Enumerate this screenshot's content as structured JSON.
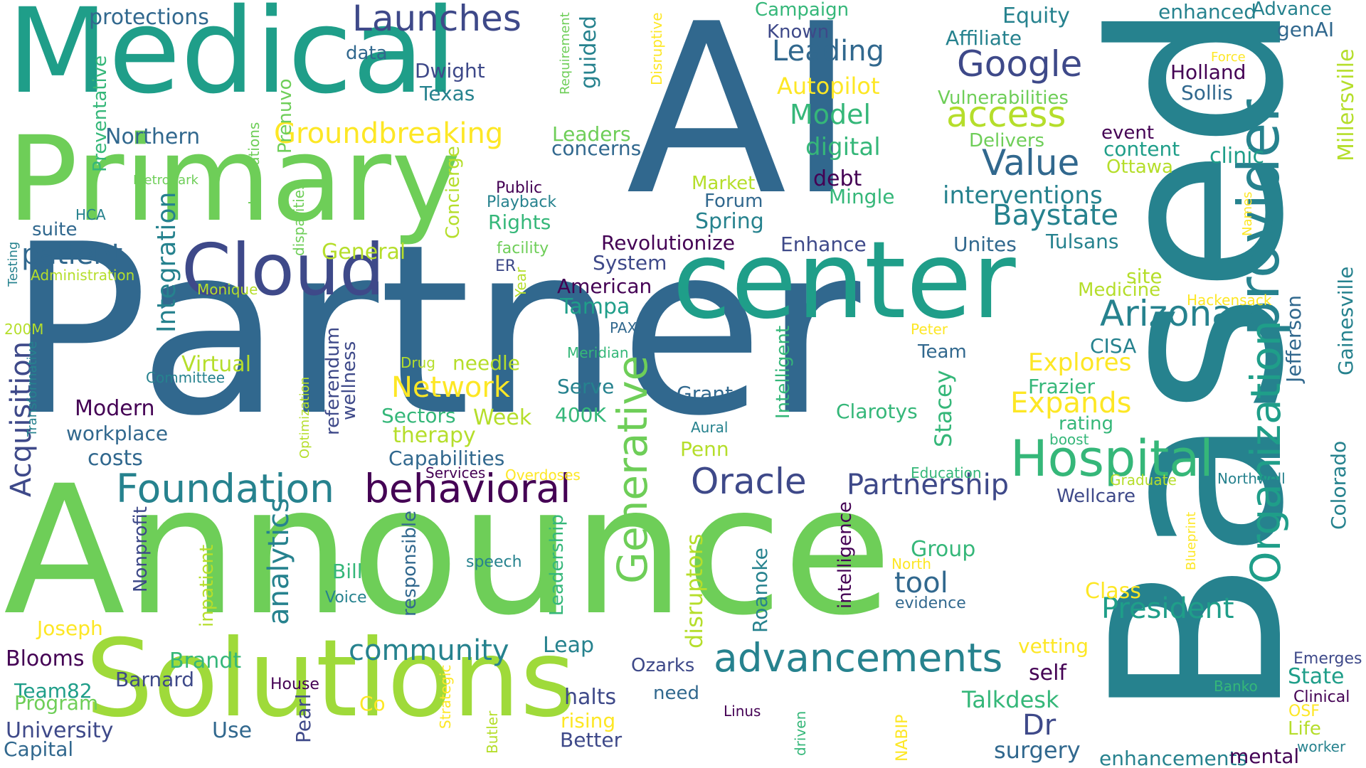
{
  "palette": {
    "dark_purple": "#440154",
    "purple": "#3e4989",
    "blue": "#31688e",
    "teal": "#26828e",
    "green_teal": "#1f9e89",
    "green": "#35b779",
    "light_green": "#6ece58",
    "lime": "#b5de2b",
    "yellow": "#fde725"
  },
  "words": [
    {
      "text": "AI",
      "color": "#31688e"
    },
    {
      "text": "Partner",
      "color": "#31688e"
    },
    {
      "text": "Based",
      "color": "#26828e"
    },
    {
      "text": "Announce",
      "color": "#6ece58"
    },
    {
      "text": "Medical",
      "color": "#1f9e89"
    },
    {
      "text": "Primary",
      "color": "#6ece58"
    },
    {
      "text": "Solutions",
      "color": "#9fda3a"
    },
    {
      "text": "center",
      "color": "#1f9e89"
    },
    {
      "text": "Cloud",
      "color": "#3e4989"
    },
    {
      "text": "provider",
      "color": "#26828e"
    },
    {
      "text": "Hospital",
      "color": "#35b779"
    },
    {
      "text": "Organization",
      "color": "#1f9e89"
    },
    {
      "text": "Generative",
      "color": "#6ece58"
    },
    {
      "text": "Foundation",
      "color": "#26828e"
    },
    {
      "text": "behavioral",
      "color": "#440154"
    },
    {
      "text": "advancements",
      "color": "#26828e"
    },
    {
      "text": "Oracle",
      "color": "#3e4989"
    },
    {
      "text": "Launches",
      "color": "#3e4989"
    },
    {
      "text": "Google",
      "color": "#3e4989"
    },
    {
      "text": "access",
      "color": "#b5de2b"
    },
    {
      "text": "Value",
      "color": "#31688e"
    },
    {
      "text": "Arizona",
      "color": "#26828e"
    },
    {
      "text": "Partnership",
      "color": "#3e4989"
    },
    {
      "text": "President",
      "color": "#1f9e89"
    },
    {
      "text": "Groundbreaking",
      "color": "#fde725"
    },
    {
      "text": "Baystate",
      "color": "#26828e"
    },
    {
      "text": "patient",
      "color": "#31688e"
    },
    {
      "text": "Acquisition",
      "color": "#3e4989"
    },
    {
      "text": "Integration",
      "color": "#26828e"
    },
    {
      "text": "analytics",
      "color": "#26828e"
    },
    {
      "text": "community",
      "color": "#26828e"
    },
    {
      "text": "Network",
      "color": "#fde725"
    },
    {
      "text": "Expands",
      "color": "#fde725"
    },
    {
      "text": "Leading",
      "color": "#31688e"
    },
    {
      "text": "Model",
      "color": "#35b779"
    },
    {
      "text": "tool",
      "color": "#31688e"
    },
    {
      "text": "Dr",
      "color": "#3e4989"
    },
    {
      "text": "Millersville",
      "color": "#b5de2b"
    },
    {
      "text": "Gainesville",
      "color": "#26828e"
    },
    {
      "text": "Colorado",
      "color": "#26828e"
    },
    {
      "text": "Jefferson",
      "color": "#31688e"
    },
    {
      "text": "digital",
      "color": "#35b779"
    },
    {
      "text": "interventions",
      "color": "#26828e"
    },
    {
      "text": "Autopilot",
      "color": "#fde725"
    },
    {
      "text": "Stacey",
      "color": "#35b779"
    },
    {
      "text": "Explores",
      "color": "#fde725"
    },
    {
      "text": "Talkdesk",
      "color": "#35b779"
    },
    {
      "text": "surgery",
      "color": "#31688e"
    },
    {
      "text": "disruptors",
      "color": "#b5de2b"
    },
    {
      "text": "Roanoke",
      "color": "#26828e"
    },
    {
      "text": "intelligence",
      "color": "#440154"
    },
    {
      "text": "Intelligent",
      "color": "#35b779"
    },
    {
      "text": "Leadership",
      "color": "#35b779"
    },
    {
      "text": "responsible",
      "color": "#31688e"
    },
    {
      "text": "referendum",
      "color": "#3e4989"
    },
    {
      "text": "wellness",
      "color": "#3e4989"
    },
    {
      "text": "Concierge",
      "color": "#b5de2b"
    },
    {
      "text": "Prenuvo",
      "color": "#6ece58"
    },
    {
      "text": "guided",
      "color": "#26828e"
    },
    {
      "text": "Preventative",
      "color": "#35b779"
    },
    {
      "text": "Nonprofit",
      "color": "#3e4989"
    },
    {
      "text": "inpatient",
      "color": "#b5de2b"
    },
    {
      "text": "Pearl",
      "color": "#3e4989"
    },
    {
      "text": "Modern",
      "color": "#440154"
    },
    {
      "text": "workplace",
      "color": "#31688e"
    },
    {
      "text": "costs",
      "color": "#31688e"
    },
    {
      "text": "Northern",
      "color": "#31688e"
    },
    {
      "text": "protections",
      "color": "#31688e"
    },
    {
      "text": "Dwight",
      "color": "#3e4989"
    },
    {
      "text": "Texas",
      "color": "#26828e"
    },
    {
      "text": "data",
      "color": "#31688e"
    },
    {
      "text": "Leaders",
      "color": "#6ece58"
    },
    {
      "text": "concerns",
      "color": "#31688e"
    },
    {
      "text": "Market",
      "color": "#b5de2b"
    },
    {
      "text": "Forum",
      "color": "#31688e"
    },
    {
      "text": "Spring",
      "color": "#26828e"
    },
    {
      "text": "debt",
      "color": "#440154"
    },
    {
      "text": "Mingle",
      "color": "#35b779"
    },
    {
      "text": "Revolutionize",
      "color": "#440154"
    },
    {
      "text": "Enhance",
      "color": "#3e4989"
    },
    {
      "text": "Unites",
      "color": "#31688e"
    },
    {
      "text": "Tulsans",
      "color": "#26828e"
    },
    {
      "text": "System",
      "color": "#3e4989"
    },
    {
      "text": "American",
      "color": "#440154"
    },
    {
      "text": "Tampa",
      "color": "#1f9e89"
    },
    {
      "text": "General",
      "color": "#b5de2b"
    },
    {
      "text": "Rights",
      "color": "#35b779"
    },
    {
      "text": "Public",
      "color": "#440154"
    },
    {
      "text": "Playback",
      "color": "#26828e"
    },
    {
      "text": "facility",
      "color": "#6ece58"
    },
    {
      "text": "ER",
      "color": "#3e4989"
    },
    {
      "text": "Year",
      "color": "#b5de2b"
    },
    {
      "text": "Equity",
      "color": "#26828e"
    },
    {
      "text": "Affiliate",
      "color": "#26828e"
    },
    {
      "text": "Campaign",
      "color": "#35b779"
    },
    {
      "text": "Known",
      "color": "#3e4989"
    },
    {
      "text": "enhanced",
      "color": "#26828e"
    },
    {
      "text": "Advance",
      "color": "#26828e"
    },
    {
      "text": "genAI",
      "color": "#31688e"
    },
    {
      "text": "Holland",
      "color": "#440154"
    },
    {
      "text": "Sollis",
      "color": "#31688e"
    },
    {
      "text": "Force",
      "color": "#fde725"
    },
    {
      "text": "Vulnerabilities",
      "color": "#6ece58"
    },
    {
      "text": "Delivers",
      "color": "#6ece58"
    },
    {
      "text": "event",
      "color": "#440154"
    },
    {
      "text": "content",
      "color": "#1f9e89"
    },
    {
      "text": "Ottawa",
      "color": "#b5de2b"
    },
    {
      "text": "clinic",
      "color": "#1f9e89"
    },
    {
      "text": "Names",
      "color": "#fde725"
    },
    {
      "text": "site",
      "color": "#b5de2b"
    },
    {
      "text": "Medicine",
      "color": "#b5de2b"
    },
    {
      "text": "Hackensack",
      "color": "#fde725"
    },
    {
      "text": "Peter",
      "color": "#fde725"
    },
    {
      "text": "CISA",
      "color": "#26828e"
    },
    {
      "text": "Frazier",
      "color": "#35b779"
    },
    {
      "text": "rating",
      "color": "#35b779"
    },
    {
      "text": "boost",
      "color": "#35b779"
    },
    {
      "text": "Graduate",
      "color": "#b5de2b"
    },
    {
      "text": "Northwell",
      "color": "#26828e"
    },
    {
      "text": "Wellcare",
      "color": "#3e4989"
    },
    {
      "text": "Education",
      "color": "#35b779"
    },
    {
      "text": "Clarotys",
      "color": "#35b779"
    },
    {
      "text": "Team",
      "color": "#31688e"
    },
    {
      "text": "Grant",
      "color": "#31688e"
    },
    {
      "text": "Aural",
      "color": "#26828e"
    },
    {
      "text": "Penn",
      "color": "#b5de2b"
    },
    {
      "text": "PAX",
      "color": "#31688e"
    },
    {
      "text": "Meridian",
      "color": "#35b779"
    },
    {
      "text": "Serve",
      "color": "#26828e"
    },
    {
      "text": "400K",
      "color": "#35b779"
    },
    {
      "text": "Week",
      "color": "#b5de2b"
    },
    {
      "text": "needle",
      "color": "#b5de2b"
    },
    {
      "text": "Drug",
      "color": "#b5de2b"
    },
    {
      "text": "Sectors",
      "color": "#35b779"
    },
    {
      "text": "therapy",
      "color": "#b5de2b"
    },
    {
      "text": "Capabilities",
      "color": "#31688e"
    },
    {
      "text": "Services",
      "color": "#440154"
    },
    {
      "text": "Overdoses",
      "color": "#fde725"
    },
    {
      "text": "Virtual",
      "color": "#b5de2b"
    },
    {
      "text": "Committee",
      "color": "#26828e"
    },
    {
      "text": "Monique",
      "color": "#b5de2b"
    },
    {
      "text": "Administration",
      "color": "#b5de2b"
    },
    {
      "text": "suite",
      "color": "#31688e"
    },
    {
      "text": "HCA",
      "color": "#26828e"
    },
    {
      "text": "Metropark",
      "color": "#6ece58"
    },
    {
      "text": "Innovations",
      "color": "#6ece58"
    },
    {
      "text": "disparities",
      "color": "#6ece58"
    },
    {
      "text": "Optimization",
      "color": "#b5de2b"
    },
    {
      "text": "Testing",
      "color": "#26828e"
    },
    {
      "text": "200M",
      "color": "#b5de2b"
    },
    {
      "text": "Transformative",
      "color": "#26828e"
    },
    {
      "text": "Requirement",
      "color": "#6ece58"
    },
    {
      "text": "Disruptive",
      "color": "#fde725"
    },
    {
      "text": "Group",
      "color": "#35b779"
    },
    {
      "text": "North",
      "color": "#fde725"
    },
    {
      "text": "evidence",
      "color": "#31688e"
    },
    {
      "text": "Class",
      "color": "#fde725"
    },
    {
      "text": "vetting",
      "color": "#fde725"
    },
    {
      "text": "self",
      "color": "#440154"
    },
    {
      "text": "Ozarks",
      "color": "#3e4989"
    },
    {
      "text": "need",
      "color": "#31688e"
    },
    {
      "text": "halts",
      "color": "#3e4989"
    },
    {
      "text": "rising",
      "color": "#fde725"
    },
    {
      "text": "Better",
      "color": "#3e4989"
    },
    {
      "text": "Leap",
      "color": "#26828e"
    },
    {
      "text": "Linus",
      "color": "#440154"
    },
    {
      "text": "driven",
      "color": "#35b779"
    },
    {
      "text": "NABIP",
      "color": "#fde725"
    },
    {
      "text": "speech",
      "color": "#26828e"
    },
    {
      "text": "Bill",
      "color": "#35b779"
    },
    {
      "text": "Voice",
      "color": "#26828e"
    },
    {
      "text": "Joseph",
      "color": "#fde725"
    },
    {
      "text": "Blooms",
      "color": "#440154"
    },
    {
      "text": "Brandt",
      "color": "#35b779"
    },
    {
      "text": "Barnard",
      "color": "#3e4989"
    },
    {
      "text": "House",
      "color": "#440154"
    },
    {
      "text": "Team82",
      "color": "#1f9e89"
    },
    {
      "text": "Program",
      "color": "#6ece58"
    },
    {
      "text": "University",
      "color": "#3e4989"
    },
    {
      "text": "Use",
      "color": "#31688e"
    },
    {
      "text": "Co",
      "color": "#fde725"
    },
    {
      "text": "Capital",
      "color": "#31688e"
    },
    {
      "text": "Strategic",
      "color": "#fde725"
    },
    {
      "text": "Butler",
      "color": "#b5de2b"
    },
    {
      "text": "Blueprint",
      "color": "#fde725"
    },
    {
      "text": "Emerges",
      "color": "#3e4989"
    },
    {
      "text": "State",
      "color": "#1f9e89"
    },
    {
      "text": "Banko",
      "color": "#35b779"
    },
    {
      "text": "Clinical",
      "color": "#440154"
    },
    {
      "text": "OSF",
      "color": "#fde725"
    },
    {
      "text": "Life",
      "color": "#b5de2b"
    },
    {
      "text": "worker",
      "color": "#26828e"
    },
    {
      "text": "enhancements",
      "color": "#26828e"
    },
    {
      "text": "mental",
      "color": "#440154"
    }
  ]
}
